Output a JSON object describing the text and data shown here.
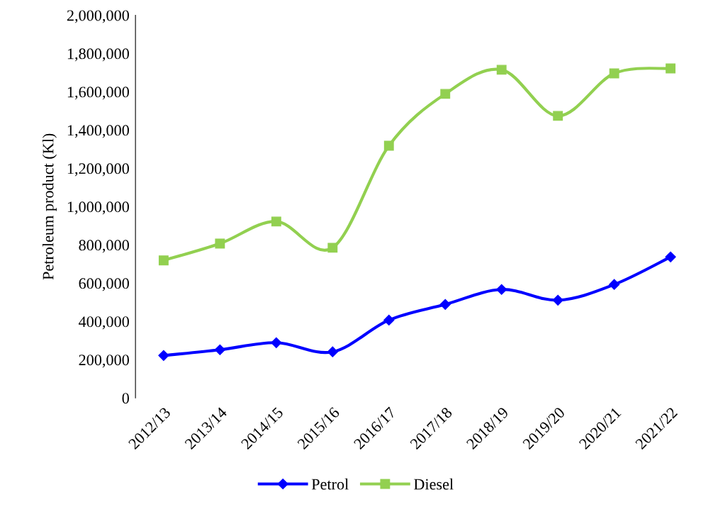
{
  "chart_data": {
    "type": "line",
    "ylabel": "Petroleum product (Kl)",
    "categories": [
      "2012/13",
      "2013/14",
      "2014/15",
      "2015/16",
      "2016/17",
      "2017/18",
      "2018/19",
      "2019/20",
      "2020/21",
      "2021/22"
    ],
    "series": [
      {
        "name": "Petrol",
        "color": "#0000ff",
        "marker": "diamond",
        "values": [
          222000,
          252000,
          289000,
          241000,
          407000,
          489000,
          567000,
          511000,
          593000,
          737000
        ]
      },
      {
        "name": "Diesel",
        "color": "#92d050",
        "marker": "square",
        "values": [
          719000,
          807000,
          922000,
          785000,
          1318000,
          1589000,
          1715000,
          1474000,
          1696000,
          1722000
        ]
      }
    ],
    "ylim": [
      0,
      2000000
    ],
    "yticks": [
      {
        "value": 0,
        "label": "0"
      },
      {
        "value": 200000,
        "label": "200,000"
      },
      {
        "value": 400000,
        "label": "400,000"
      },
      {
        "value": 600000,
        "label": "600,000"
      },
      {
        "value": 800000,
        "label": "800,000"
      },
      {
        "value": 1000000,
        "label": "1,000,000"
      },
      {
        "value": 1200000,
        "label": "1,200,000"
      },
      {
        "value": 1400000,
        "label": "1,400,000"
      },
      {
        "value": 1600000,
        "label": "1,600,000"
      },
      {
        "value": 1800000,
        "label": "1,800,000"
      },
      {
        "value": 2000000,
        "label": "2,000,000"
      }
    ],
    "grid": false,
    "legend": "bottom",
    "line_style": "solid"
  }
}
